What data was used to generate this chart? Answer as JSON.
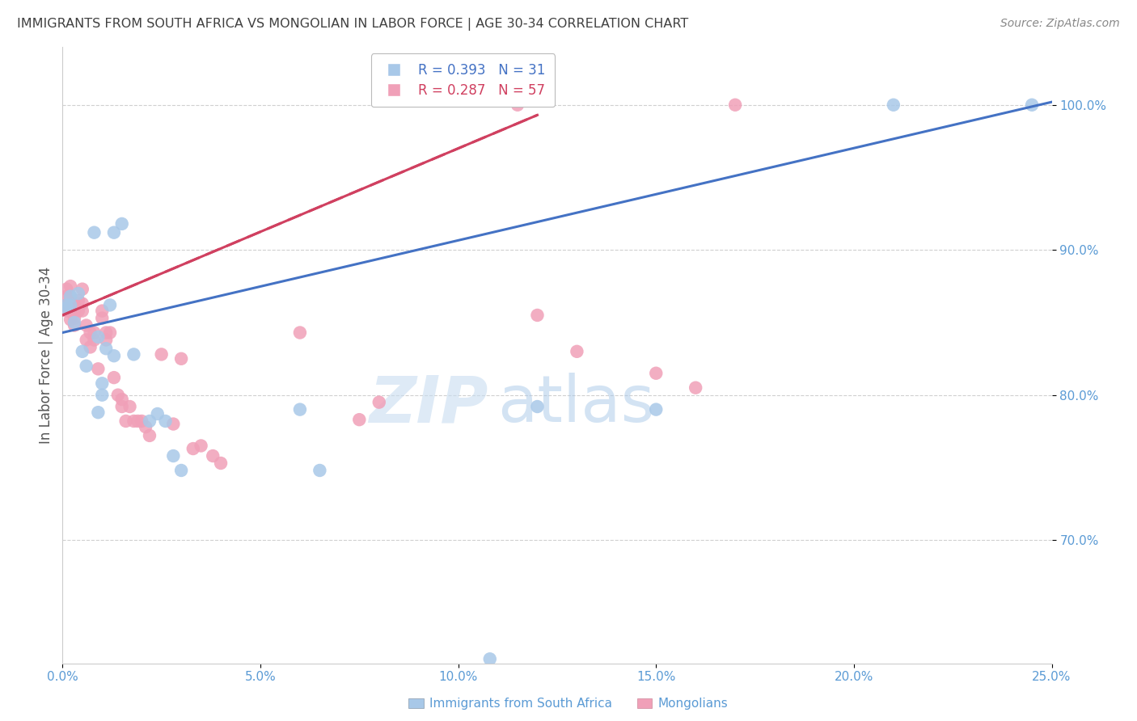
{
  "title": "IMMIGRANTS FROM SOUTH AFRICA VS MONGOLIAN IN LABOR FORCE | AGE 30-34 CORRELATION CHART",
  "source": "Source: ZipAtlas.com",
  "ylabel": "In Labor Force | Age 30-34",
  "legend_label1": "Immigrants from South Africa",
  "legend_label2": "Mongolians",
  "R1": 0.393,
  "N1": 31,
  "R2": 0.287,
  "N2": 57,
  "color_blue": "#a8c8e8",
  "color_pink": "#f0a0b8",
  "color_blue_line": "#4472c4",
  "color_pink_line": "#d04060",
  "color_axis": "#5b9bd5",
  "color_title": "#404040",
  "color_source": "#888888",
  "color_grid": "#d0d0d0",
  "watermark_zip": "ZIP",
  "watermark_atlas": "atlas",
  "xlim": [
    0.0,
    0.25
  ],
  "ylim": [
    0.615,
    1.04
  ],
  "yticks": [
    0.7,
    0.8,
    0.9,
    1.0
  ],
  "xticks": [
    0.0,
    0.05,
    0.1,
    0.15,
    0.2,
    0.25
  ],
  "blue_x": [
    0.001,
    0.001,
    0.002,
    0.002,
    0.003,
    0.004,
    0.005,
    0.006,
    0.008,
    0.009,
    0.01,
    0.01,
    0.012,
    0.013,
    0.015,
    0.018,
    0.022,
    0.024,
    0.026,
    0.028,
    0.03,
    0.06,
    0.065,
    0.12,
    0.21,
    0.245,
    0.009,
    0.011,
    0.013,
    0.108,
    0.15
  ],
  "blue_y": [
    0.86,
    0.862,
    0.862,
    0.868,
    0.85,
    0.87,
    0.83,
    0.82,
    0.912,
    0.788,
    0.8,
    0.808,
    0.862,
    0.912,
    0.918,
    0.828,
    0.782,
    0.787,
    0.782,
    0.758,
    0.748,
    0.79,
    0.748,
    0.792,
    1.0,
    1.0,
    0.84,
    0.832,
    0.827,
    0.618,
    0.79
  ],
  "pink_x": [
    0.001,
    0.001,
    0.001,
    0.001,
    0.002,
    0.002,
    0.002,
    0.002,
    0.002,
    0.003,
    0.003,
    0.003,
    0.003,
    0.004,
    0.004,
    0.005,
    0.005,
    0.005,
    0.006,
    0.006,
    0.007,
    0.007,
    0.008,
    0.008,
    0.009,
    0.01,
    0.01,
    0.011,
    0.011,
    0.012,
    0.013,
    0.014,
    0.015,
    0.015,
    0.016,
    0.017,
    0.018,
    0.019,
    0.02,
    0.021,
    0.022,
    0.025,
    0.028,
    0.03,
    0.033,
    0.035,
    0.038,
    0.04,
    0.06,
    0.075,
    0.08,
    0.115,
    0.17,
    0.12,
    0.13,
    0.15,
    0.16
  ],
  "pink_y": [
    0.858,
    0.862,
    0.868,
    0.873,
    0.852,
    0.858,
    0.862,
    0.868,
    0.875,
    0.848,
    0.853,
    0.858,
    0.862,
    0.858,
    0.865,
    0.858,
    0.863,
    0.873,
    0.838,
    0.848,
    0.833,
    0.843,
    0.838,
    0.843,
    0.818,
    0.853,
    0.858,
    0.838,
    0.843,
    0.843,
    0.812,
    0.8,
    0.792,
    0.797,
    0.782,
    0.792,
    0.782,
    0.782,
    0.782,
    0.778,
    0.772,
    0.828,
    0.78,
    0.825,
    0.763,
    0.765,
    0.758,
    0.753,
    0.843,
    0.783,
    0.795,
    1.0,
    1.0,
    0.855,
    0.83,
    0.815,
    0.805
  ]
}
